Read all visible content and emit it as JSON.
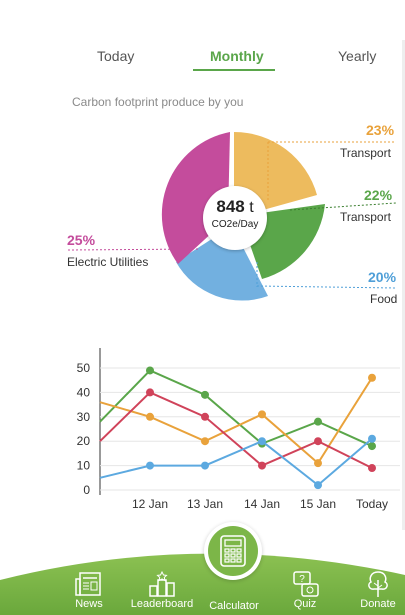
{
  "tabs": [
    {
      "label": "Today",
      "active": false
    },
    {
      "label": "Monthly",
      "active": true
    },
    {
      "label": "Yearly",
      "active": false
    }
  ],
  "subtitle": "Carbon footprint produce by you",
  "center": {
    "value": "848",
    "unit_inline": "t",
    "unit": "CO2e/Day"
  },
  "categories": [
    {
      "pct": "23%",
      "name": "Transport",
      "color": "#e9a23b"
    },
    {
      "pct": "22%",
      "name": "Transport",
      "color": "#5aa64a"
    },
    {
      "pct": "20%",
      "name": "Food",
      "color": "#4f9fd8"
    },
    {
      "pct": "25%",
      "name": "Electric Utilities",
      "color": "#c44c9c"
    }
  ],
  "chart_data": {
    "type": "line",
    "x": [
      "",
      "12 Jan",
      "13 Jan",
      "14 Jan",
      "15 Jan",
      "Today"
    ],
    "ylim": [
      0,
      50
    ],
    "yticks": [
      0,
      10,
      20,
      30,
      40,
      50
    ],
    "series": [
      {
        "color": "#5aa64a",
        "values": [
          28,
          49,
          39,
          19,
          28,
          18
        ]
      },
      {
        "color": "#e9a23b",
        "values": [
          36,
          30,
          20,
          31,
          11,
          46
        ]
      },
      {
        "color": "#d0435a",
        "values": [
          20,
          40,
          30,
          10,
          20,
          9
        ]
      },
      {
        "color": "#5ca9e0",
        "values": [
          5,
          10,
          10,
          20,
          2,
          21
        ]
      }
    ]
  },
  "nav": [
    {
      "label": "News",
      "icon": "newspaper-icon"
    },
    {
      "label": "Leaderboard",
      "icon": "leaderboard-icon"
    },
    {
      "label": "Calculator",
      "icon": "calculator-icon"
    },
    {
      "label": "Quiz",
      "icon": "quiz-icon"
    },
    {
      "label": "Donate",
      "icon": "tree-icon"
    }
  ],
  "colors": {
    "accent": "#5aa64a",
    "nav_bg": "#7cb648"
  }
}
